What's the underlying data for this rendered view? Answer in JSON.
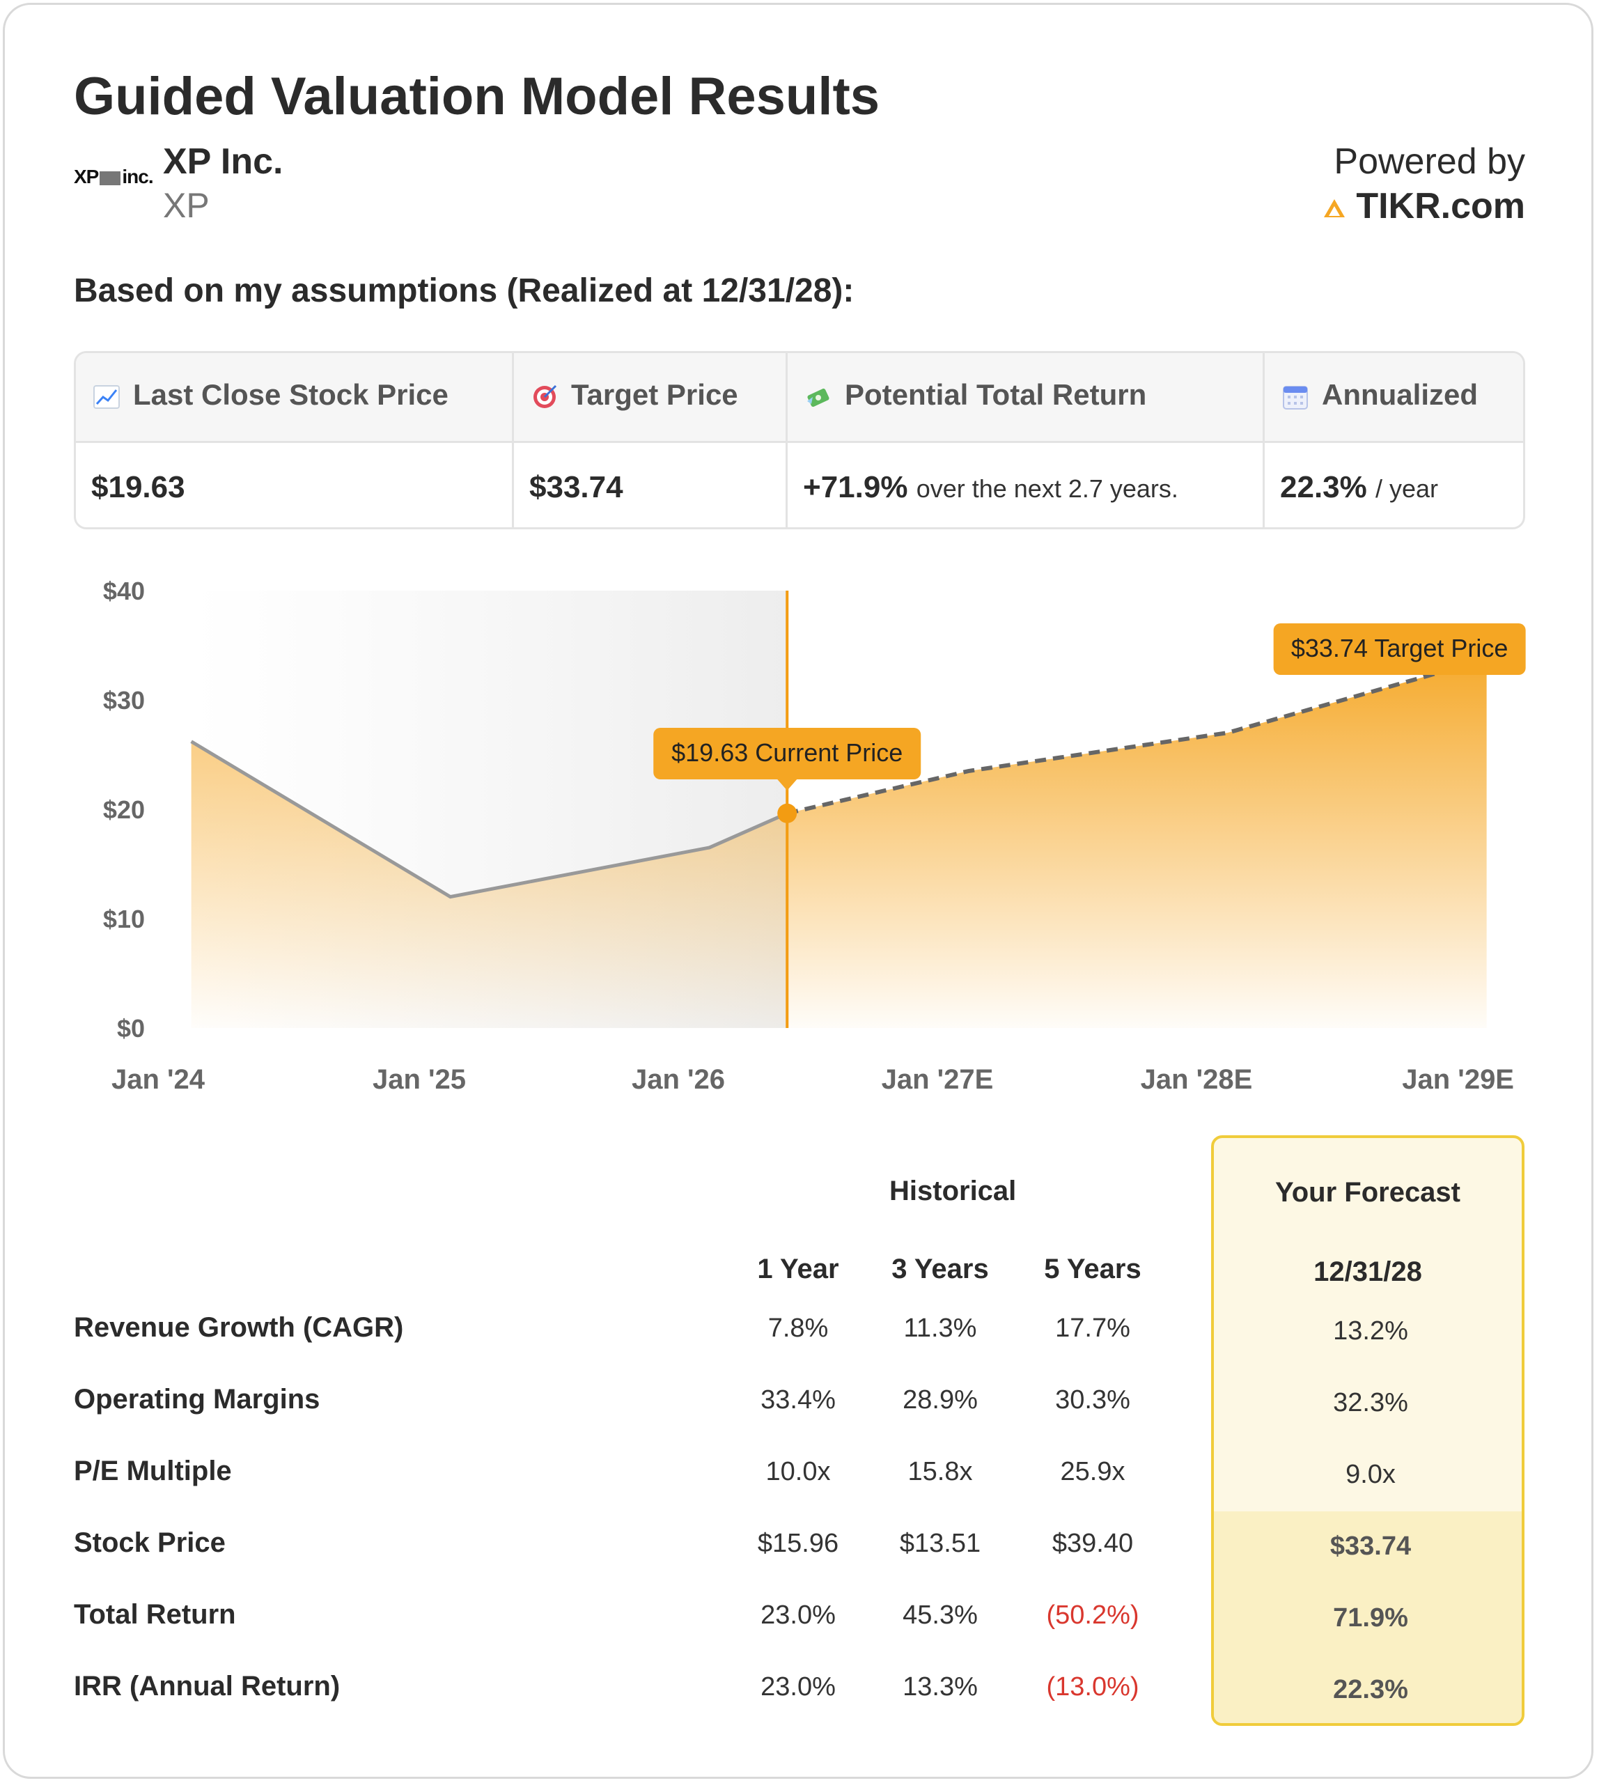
{
  "header": {
    "title": "Guided Valuation Model Results",
    "logo_text_left": "XP",
    "logo_text_right": "inc.",
    "company_name": "XP Inc.",
    "ticker": "XP",
    "powered_by": "Powered by",
    "brand": "TIKR.com"
  },
  "subtitle": "Based on my assumptions (Realized at 12/31/28):",
  "kpis": [
    {
      "label": "Last Close Stock Price",
      "value": "$19.63",
      "note": ""
    },
    {
      "label": "Target Price",
      "value": "$33.74",
      "note": ""
    },
    {
      "label": "Potential Total Return",
      "value": "+71.9%",
      "note": "over the next 2.7 years."
    },
    {
      "label": "Annualized",
      "value": "22.3%",
      "note": "/ year"
    }
  ],
  "chart_data": {
    "type": "area",
    "title": "",
    "x_tick_labels": [
      "Jan '24",
      "Jan '25",
      "Jan '26",
      "Jan '27E",
      "Jan '28E",
      "Jan '29E"
    ],
    "y_tick_labels": [
      "$0",
      "$10",
      "$20",
      "$30",
      "$40"
    ],
    "ylim": [
      0,
      40
    ],
    "xlim": [
      2024.0,
      2029.0
    ],
    "series": [
      {
        "name": "Historical",
        "style": "solid",
        "color": "#999999",
        "points": [
          {
            "x": 2024.12,
            "y": 26.2
          },
          {
            "x": 2025.12,
            "y": 12.0
          },
          {
            "x": 2026.12,
            "y": 16.5
          },
          {
            "x": 2026.42,
            "y": 19.63
          }
        ]
      },
      {
        "name": "Forecast",
        "style": "dashed",
        "color": "#666666",
        "points": [
          {
            "x": 2026.42,
            "y": 19.63
          },
          {
            "x": 2027.12,
            "y": 23.5
          },
          {
            "x": 2028.12,
            "y": 27.0
          },
          {
            "x": 2029.12,
            "y": 33.74
          }
        ]
      }
    ],
    "current_marker": {
      "x": 2026.42,
      "y": 19.63,
      "label": "$19.63 Current Price"
    },
    "target_marker": {
      "x": 2029.12,
      "y": 33.74,
      "label": "$33.74 Target Price"
    },
    "colors": {
      "accent": "#f5a623",
      "line": "#999999",
      "marker": "#f39c12"
    }
  },
  "table": {
    "historical_label": "Historical",
    "forecast_label": "Your Forecast",
    "col_headers": [
      "1 Year",
      "3 Years",
      "5 Years"
    ],
    "forecast_date": "12/31/28",
    "rows": [
      {
        "label": "Revenue Growth (CAGR)",
        "values": [
          "7.8%",
          "11.3%",
          "17.7%"
        ],
        "forecast": "13.2%"
      },
      {
        "label": "Operating Margins",
        "values": [
          "33.4%",
          "28.9%",
          "30.3%"
        ],
        "forecast": "32.3%"
      },
      {
        "label": "P/E Multiple",
        "values": [
          "10.0x",
          "15.8x",
          "25.9x"
        ],
        "forecast": "9.0x"
      },
      {
        "label": "Stock Price",
        "values": [
          "$15.96",
          "$13.51",
          "$39.40"
        ],
        "forecast": "$33.74"
      },
      {
        "label": "Total Return",
        "values": [
          "23.0%",
          "45.3%",
          "(50.2%)"
        ],
        "forecast": "71.9%"
      },
      {
        "label": "IRR (Annual Return)",
        "values": [
          "23.0%",
          "13.3%",
          "(13.0%)"
        ],
        "forecast": "22.3%"
      }
    ]
  }
}
